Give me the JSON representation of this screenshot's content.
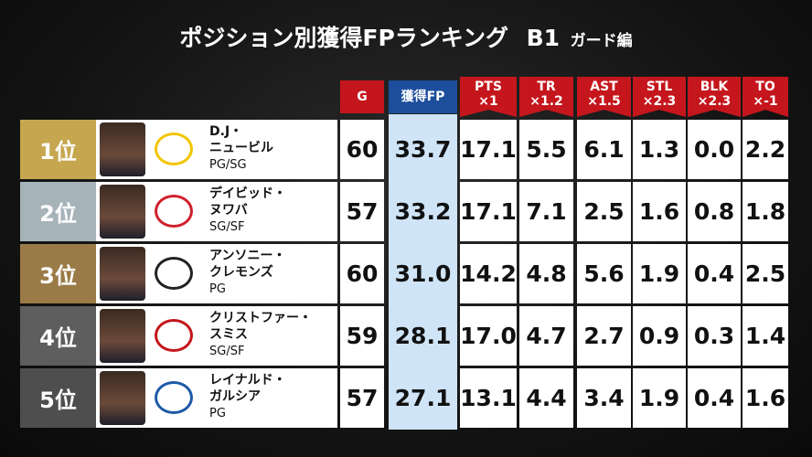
{
  "header": {
    "title": "ポジション別獲得FPランキング",
    "league": "B1",
    "subtitle": "ガード編"
  },
  "columns": [
    {
      "label": "G"
    },
    {
      "label": "獲得FP"
    },
    {
      "label": "PTS",
      "weight": "×1"
    },
    {
      "label": "TR",
      "weight": "×1.2"
    },
    {
      "label": "AST",
      "weight": "×1.5"
    },
    {
      "label": "STL",
      "weight": "×2.3"
    },
    {
      "label": "BLK",
      "weight": "×2.3"
    },
    {
      "label": "TO",
      "weight": "×-1"
    }
  ],
  "rows": [
    {
      "rank": "1位",
      "name": [
        "D.J・",
        "ニュービル"
      ],
      "position": "PG/SG",
      "stats": [
        "60",
        "33.7",
        "17.1",
        "5.5",
        "6.1",
        "1.3",
        "0.0",
        "2.2"
      ]
    },
    {
      "rank": "2位",
      "name": [
        "デイビッド・",
        "ヌワバ"
      ],
      "position": "SG/SF",
      "stats": [
        "57",
        "33.2",
        "17.1",
        "7.1",
        "2.5",
        "1.6",
        "0.8",
        "1.8"
      ]
    },
    {
      "rank": "3位",
      "name": [
        "アンソニー・",
        "クレモンズ"
      ],
      "position": "PG",
      "stats": [
        "60",
        "31.0",
        "14.2",
        "4.8",
        "5.6",
        "1.9",
        "0.4",
        "2.5"
      ]
    },
    {
      "rank": "4位",
      "name": [
        "クリストファー・",
        "スミス"
      ],
      "position": "SG/SF",
      "stats": [
        "59",
        "28.1",
        "17.0",
        "4.7",
        "2.7",
        "0.9",
        "0.3",
        "1.4"
      ]
    },
    {
      "rank": "5位",
      "name": [
        "レイナルド・",
        "ガルシア"
      ],
      "position": "PG",
      "stats": [
        "57",
        "27.1",
        "13.1",
        "4.4",
        "3.4",
        "1.9",
        "0.4",
        "1.6"
      ]
    }
  ]
}
